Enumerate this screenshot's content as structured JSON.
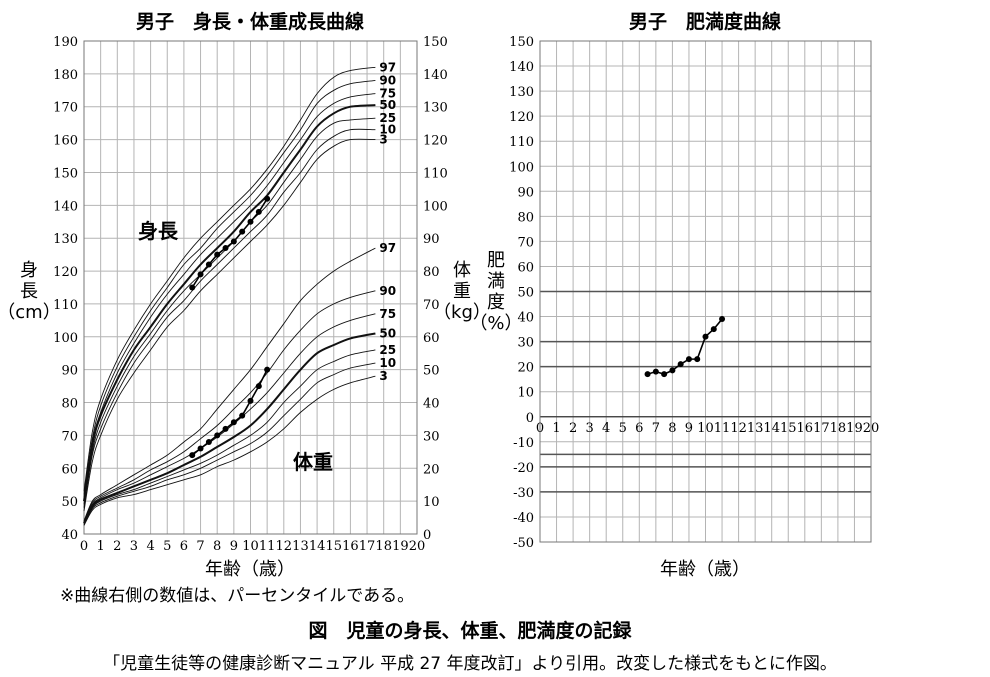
{
  "chart_data": [
    {
      "type": "line",
      "title": "男子　身長・体重成長曲線",
      "xlabel": "年齢（歳）",
      "ylabel_left": "身長（cm）",
      "ylabel_right": "体重（kg）",
      "xlim": [
        0,
        20
      ],
      "ylim_left": [
        40,
        190
      ],
      "ylim_right": [
        0,
        150
      ],
      "grid": true,
      "x_ticks": [
        "0",
        "1",
        "2",
        "3",
        "4",
        "5",
        "6",
        "7",
        "8",
        "9",
        "10",
        "11",
        "12",
        "13",
        "14",
        "15",
        "16",
        "17",
        "18",
        "19",
        "20"
      ],
      "y_left_ticks": [
        "40",
        "50",
        "60",
        "70",
        "80",
        "90",
        "100",
        "110",
        "120",
        "130",
        "140",
        "150",
        "160",
        "170",
        "180",
        "190"
      ],
      "y_right_ticks": [
        "0",
        "10",
        "20",
        "30",
        "40",
        "50",
        "60",
        "70",
        "80",
        "90",
        "100",
        "110",
        "120",
        "130",
        "140",
        "150"
      ],
      "annotations": {
        "height": "身長",
        "weight": "体重"
      },
      "percentile_labels": [
        "97",
        "90",
        "75",
        "50",
        "25",
        "10",
        "3"
      ],
      "height_percentiles": [
        {
          "name": "97",
          "x": [
            0,
            0.5,
            1,
            2,
            3,
            4,
            5,
            6,
            7,
            8,
            9,
            10,
            11,
            12,
            13,
            14,
            15,
            16,
            17.5
          ],
          "y": [
            53,
            71,
            81,
            93,
            102,
            110,
            117,
            124,
            130,
            135,
            140,
            145,
            151,
            158,
            166,
            174,
            179,
            181,
            182
          ]
        },
        {
          "name": "90",
          "x": [
            0,
            0.5,
            1,
            2,
            3,
            4,
            5,
            6,
            7,
            8,
            9,
            10,
            11,
            12,
            13,
            14,
            15,
            16,
            17.5
          ],
          "y": [
            52,
            69,
            79,
            91,
            100,
            108,
            115,
            122,
            127,
            133,
            138,
            143,
            149,
            156,
            163,
            171,
            175,
            177,
            178
          ]
        },
        {
          "name": "75",
          "x": [
            0,
            0.5,
            1,
            2,
            3,
            4,
            5,
            6,
            7,
            8,
            9,
            10,
            11,
            12,
            13,
            14,
            15,
            16,
            17.5
          ],
          "y": [
            51,
            68,
            77,
            89,
            98,
            106,
            113,
            119,
            125,
            130,
            135,
            140,
            146,
            153,
            160,
            167,
            171,
            173,
            174
          ]
        },
        {
          "name": "50",
          "x": [
            0,
            0.5,
            1,
            2,
            3,
            4,
            5,
            6,
            7,
            8,
            9,
            10,
            11,
            12,
            13,
            14,
            15,
            16,
            17.5
          ],
          "y": [
            50,
            67,
            76,
            87,
            96,
            103,
            110,
            116,
            122,
            127,
            132,
            138,
            143,
            150,
            157,
            164,
            168,
            170,
            170.5
          ]
        },
        {
          "name": "25",
          "x": [
            0,
            0.5,
            1,
            2,
            3,
            4,
            5,
            6,
            7,
            8,
            9,
            10,
            11,
            12,
            13,
            14,
            15,
            16,
            17.5
          ],
          "y": [
            49,
            65,
            74,
            85,
            94,
            101,
            108,
            114,
            119,
            124,
            129,
            135,
            140,
            147,
            154,
            161,
            165,
            166,
            166.5
          ]
        },
        {
          "name": "10",
          "x": [
            0,
            0.5,
            1,
            2,
            3,
            4,
            5,
            6,
            7,
            8,
            9,
            10,
            11,
            12,
            13,
            14,
            15,
            16,
            17.5
          ],
          "y": [
            48,
            64,
            72,
            83,
            92,
            99,
            106,
            111,
            117,
            122,
            127,
            132,
            137,
            144,
            150,
            157,
            161,
            163,
            163
          ]
        },
        {
          "name": "3",
          "x": [
            0,
            0.5,
            1,
            2,
            3,
            4,
            5,
            6,
            7,
            8,
            9,
            10,
            11,
            12,
            13,
            14,
            15,
            16,
            17.5
          ],
          "y": [
            47,
            62,
            70,
            81,
            89,
            96,
            103,
            108,
            114,
            119,
            124,
            129,
            134,
            140,
            147,
            154,
            158,
            160,
            160
          ]
        }
      ],
      "weight_percentiles": [
        {
          "name": "97",
          "x": [
            0,
            0.5,
            1,
            2,
            3,
            4,
            5,
            6,
            7,
            8,
            9,
            10,
            11,
            12,
            13,
            14,
            15,
            16,
            17.5
          ],
          "y": [
            4,
            10,
            12,
            15,
            18,
            21,
            24,
            28,
            32,
            38,
            44,
            50,
            57,
            64,
            71,
            76,
            80,
            83,
            87
          ]
        },
        {
          "name": "90",
          "x": [
            0,
            0.5,
            1,
            2,
            3,
            4,
            5,
            6,
            7,
            8,
            9,
            10,
            11,
            12,
            13,
            14,
            15,
            16,
            17.5
          ],
          "y": [
            3.8,
            9.5,
            11.5,
            14,
            16.5,
            19.5,
            22,
            25,
            29,
            33,
            38,
            43,
            49,
            56,
            62,
            67,
            70,
            72,
            74
          ]
        },
        {
          "name": "75",
          "x": [
            0,
            0.5,
            1,
            2,
            3,
            4,
            5,
            6,
            7,
            8,
            9,
            10,
            11,
            12,
            13,
            14,
            15,
            16,
            17.5
          ],
          "y": [
            3.6,
            9,
            11,
            13.5,
            15.5,
            18,
            20.5,
            23,
            26,
            29.5,
            33.5,
            38,
            43,
            49,
            55,
            60,
            63,
            65,
            67
          ]
        },
        {
          "name": "50",
          "x": [
            0,
            0.5,
            1,
            2,
            3,
            4,
            5,
            6,
            7,
            8,
            9,
            10,
            11,
            12,
            13,
            14,
            15,
            16,
            17.5
          ],
          "y": [
            3.3,
            8.5,
            10.5,
            12.5,
            14.5,
            16.5,
            18.5,
            21,
            23.5,
            26.5,
            29.5,
            33,
            38,
            44,
            50,
            55,
            57.5,
            59.5,
            61
          ]
        },
        {
          "name": "25",
          "x": [
            0,
            0.5,
            1,
            2,
            3,
            4,
            5,
            6,
            7,
            8,
            9,
            10,
            11,
            12,
            13,
            14,
            15,
            16,
            17.5
          ],
          "y": [
            3.1,
            8,
            10,
            12,
            13.5,
            15.5,
            17.5,
            19.5,
            21.5,
            24,
            27,
            30,
            34,
            40,
            45,
            50,
            52.5,
            54.5,
            56
          ]
        },
        {
          "name": "10",
          "x": [
            0,
            0.5,
            1,
            2,
            3,
            4,
            5,
            6,
            7,
            8,
            9,
            10,
            11,
            12,
            13,
            14,
            15,
            16,
            17.5
          ],
          "y": [
            2.9,
            7.7,
            9.5,
            11.5,
            13,
            14.5,
            16.5,
            18,
            20,
            22.5,
            25,
            27.5,
            31,
            36,
            41,
            46,
            48.5,
            50.5,
            52
          ]
        },
        {
          "name": "3",
          "x": [
            0,
            0.5,
            1,
            2,
            3,
            4,
            5,
            6,
            7,
            8,
            9,
            10,
            11,
            12,
            13,
            14,
            15,
            16,
            17.5
          ],
          "y": [
            2.6,
            7.2,
            9,
            11,
            12,
            13.5,
            15,
            16.5,
            18,
            20.5,
            22.5,
            25,
            28,
            32,
            37,
            41,
            44,
            46,
            48
          ]
        }
      ],
      "series": [
        {
          "name": "身長",
          "axis": "left",
          "x": [
            6.5,
            7,
            7.5,
            8,
            8.5,
            9,
            9.5,
            10,
            10.5,
            11
          ],
          "y": [
            115,
            119,
            122,
            125,
            127,
            129,
            132,
            135,
            138,
            142
          ]
        },
        {
          "name": "体重",
          "axis": "right",
          "x": [
            6.5,
            7,
            7.5,
            8,
            8.5,
            9,
            9.5,
            10,
            10.5,
            11
          ],
          "y": [
            24,
            26,
            28,
            30,
            32,
            34,
            36,
            40.5,
            45,
            50
          ]
        }
      ],
      "footnote": "※曲線右側の数値は、パーセンタイルである。"
    },
    {
      "type": "line",
      "title": "男子　肥満度曲線",
      "xlabel": "年齢（歳）",
      "ylabel": "肥満度（%）",
      "xlim": [
        0,
        20
      ],
      "ylim": [
        -50,
        150
      ],
      "grid": true,
      "x_ticks": [
        "0",
        "1",
        "2",
        "3",
        "4",
        "5",
        "6",
        "7",
        "8",
        "9",
        "10",
        "11",
        "12",
        "13",
        "14",
        "15",
        "16",
        "17",
        "18",
        "19",
        "20"
      ],
      "y_ticks": [
        "150",
        "140",
        "130",
        "120",
        "110",
        "100",
        "90",
        "80",
        "70",
        "60",
        "50",
        "40",
        "30",
        "20",
        "10",
        "0",
        "-10",
        "-20",
        "-30",
        "-40",
        "-50"
      ],
      "reference_lines": [
        50,
        30,
        20,
        -15,
        -20,
        -30
      ],
      "series": [
        {
          "x": [
            6.5,
            7,
            7.5,
            8,
            8.5,
            9,
            9.5,
            10,
            10.5,
            11
          ],
          "y": [
            17,
            18,
            17,
            18.5,
            21,
            23,
            23,
            32,
            35,
            39
          ]
        }
      ]
    }
  ],
  "figure_caption": "図　児童の身長、体重、肥満度の記録",
  "source_note": "「児童生徒等の健康診断マニュアル 平成 27 年度改訂」より引用。改変した様式をもとに作図。"
}
